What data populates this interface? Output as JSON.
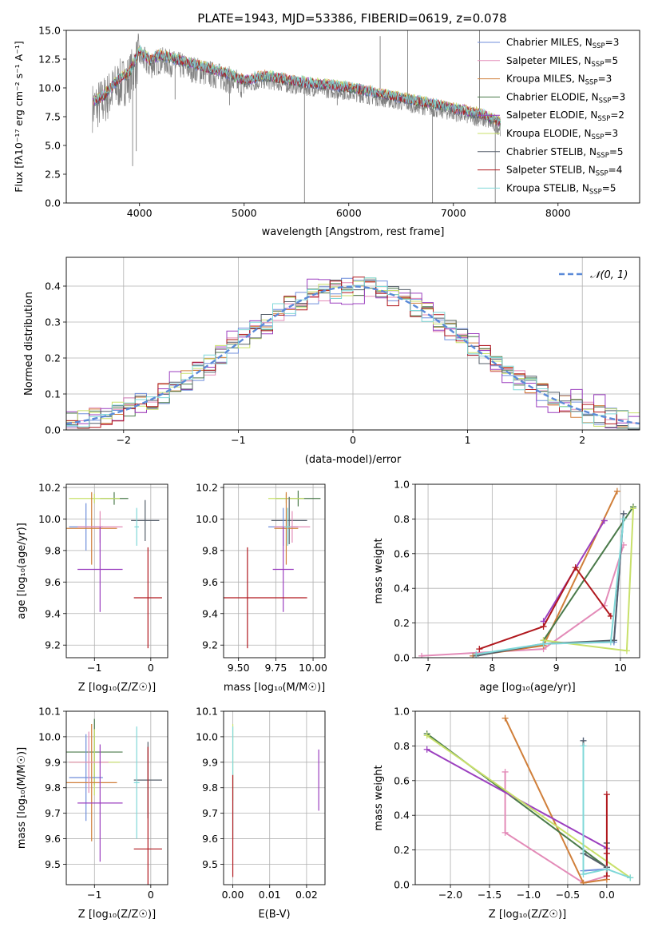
{
  "figure_title": "PLATE=1943, MJD=53386, FIBERID=0619, z=0.078",
  "series_styles": [
    {
      "name": "Chabrier MILES, N$_{SSP}$=3",
      "legend_main": "Chabrier MILES, N",
      "legend_sub": "SSP",
      "legend_tail": "=3",
      "color": "#6f8ddb"
    },
    {
      "name": "Salpeter MILES, N$_{SSP}$=5",
      "legend_main": "Salpeter MILES, N",
      "legend_sub": "SSP",
      "legend_tail": "=5",
      "color": "#e38bb8"
    },
    {
      "name": "Kroupa MILES, N$_{SSP}$=3",
      "legend_main": "Kroupa MILES, N",
      "legend_sub": "SSP",
      "legend_tail": "=3",
      "color": "#d07f3a"
    },
    {
      "name": "Chabrier ELODIE, N$_{SSP}$=3",
      "legend_main": "Chabrier ELODIE, N",
      "legend_sub": "SSP",
      "legend_tail": "=3",
      "color": "#4a7a4a"
    },
    {
      "name": "Salpeter ELODIE, N$_{SSP}$=2",
      "legend_main": "Salpeter ELODIE, N",
      "legend_sub": "SSP",
      "legend_tail": "=2",
      "color": "#9b3fbf"
    },
    {
      "name": "Kroupa ELODIE, N$_{SSP}$=3",
      "legend_main": "Kroupa ELODIE, N",
      "legend_sub": "SSP",
      "legend_tail": "=3",
      "color": "#c8e06a"
    },
    {
      "name": "Chabrier STELIB, N$_{SSP}$=5",
      "legend_main": "Chabrier STELIB, N",
      "legend_sub": "SSP",
      "legend_tail": "=5",
      "color": "#555f6a"
    },
    {
      "name": "Salpeter STELIB, N$_{SSP}$=4",
      "legend_main": "Salpeter STELIB, N",
      "legend_sub": "SSP",
      "legend_tail": "=4",
      "color": "#b0181e"
    },
    {
      "name": "Kroupa STELIB, N$_{SSP}$=5",
      "legend_main": "Kroupa STELIB, N",
      "legend_sub": "SSP",
      "legend_tail": "=5",
      "color": "#7fd8d8"
    }
  ],
  "chart_data": [
    {
      "id": "spectrum",
      "type": "line",
      "title": "PLATE=1943, MJD=53386, FIBERID=0619, z=0.078",
      "xlabel": "wavelength [Angstrom, rest frame]",
      "ylabel": "Flux [f_λ 10^-17 erg cm^-2 s^-1 A^-1]",
      "xlim": [
        3300,
        8780
      ],
      "ylim": [
        0,
        15
      ],
      "xticks": [
        4000,
        5000,
        6000,
        7000,
        8000
      ],
      "yticks": [
        0.0,
        2.5,
        5.0,
        7.5,
        10.0,
        12.5,
        15.0
      ],
      "legend_position": "upper right",
      "data_color": "#808080",
      "continuum": {
        "x": [
          3550,
          3650,
          3800,
          3900,
          4000,
          4100,
          4200,
          4400,
          4600,
          4800,
          5000,
          5200,
          5500,
          6000,
          6500,
          7000,
          7300,
          7450
        ],
        "y": [
          8.3,
          8.8,
          10.3,
          10.8,
          12.8,
          11.9,
          12.4,
          11.9,
          11.4,
          10.9,
          10.2,
          10.6,
          10.1,
          9.6,
          8.7,
          7.8,
          7.2,
          6.5
        ]
      },
      "spikes": [
        {
          "x": 3934,
          "y": 3.2
        },
        {
          "x": 3969,
          "y": 4.5
        },
        {
          "x": 4340,
          "y": 9.0
        },
        {
          "x": 4861,
          "y": 8.5
        },
        {
          "x": 5577,
          "y": 0.0
        },
        {
          "x": 5890,
          "y": 8.5
        },
        {
          "x": 6563,
          "y": 15.0
        },
        {
          "x": 6300,
          "y": 14.5
        },
        {
          "x": 6800,
          "y": 0.0
        },
        {
          "x": 7250,
          "y": 15.0
        },
        {
          "x": 7400,
          "y": 0.0
        }
      ]
    },
    {
      "id": "residuals",
      "type": "histogram",
      "xlabel": "(data-model)/error",
      "ylabel": "Normed distribution",
      "xlim": [
        -2.5,
        2.5
      ],
      "ylim": [
        0,
        0.48
      ],
      "xticks": [
        -2,
        -1,
        0,
        1,
        2
      ],
      "yticks": [
        0.0,
        0.1,
        0.2,
        0.3,
        0.4
      ],
      "legend_position": "upper right",
      "reference_curve": {
        "name": "N(0,1)",
        "label": "𝒩(0, 1)",
        "color": "#5b8ad8",
        "mean": 0,
        "sigma": 1
      },
      "bin_width": 0.1,
      "series_shape_variants": 9
    },
    {
      "id": "age_vs_Z",
      "type": "errorbar",
      "xlabel": "Z [log10(Z/Z☉)]",
      "ylabel": "age [log10(age/yr)]",
      "xlim": [
        -1.5,
        0.3
      ],
      "ylim": [
        9.12,
        10.22
      ],
      "xticks": [
        -1,
        0
      ],
      "yticks": [
        9.2,
        9.4,
        9.6,
        9.8,
        10.0,
        10.2
      ],
      "points": [
        {
          "x": -0.65,
          "y": 10.13,
          "xerr": 0.25,
          "yerr": 0.04,
          "c": 3
        },
        {
          "x": -1.0,
          "y": 10.13,
          "xerr": 0.45,
          "yerr": 0.03,
          "c": 5
        },
        {
          "x": -1.15,
          "y": 9.95,
          "xerr": 0.3,
          "yerr": 0.15,
          "c": 0
        },
        {
          "x": -1.05,
          "y": 9.94,
          "xerr": 0.45,
          "yerr": 0.23,
          "c": 2
        },
        {
          "x": -0.9,
          "y": 9.95,
          "xerr": 0.4,
          "yerr": 0.1,
          "c": 1
        },
        {
          "x": -0.9,
          "y": 9.68,
          "xerr": 0.4,
          "yerr": 0.27,
          "c": 4
        },
        {
          "x": -0.1,
          "y": 9.99,
          "xerr": 0.25,
          "yerr": 0.13,
          "c": 6
        },
        {
          "x": -0.25,
          "y": 9.95,
          "xerr": 0.04,
          "yerr": 0.12,
          "c": 8
        },
        {
          "x": -0.05,
          "y": 9.5,
          "xerr": 0.25,
          "yerr": 0.32,
          "c": 7
        }
      ]
    },
    {
      "id": "age_vs_mass",
      "type": "errorbar",
      "xlabel": "mass [log10(M/M☉)]",
      "ylabel": "",
      "xlim": [
        9.4,
        10.08
      ],
      "ylim": [
        9.12,
        10.22
      ],
      "xticks": [
        9.5,
        9.75,
        10.0
      ],
      "tick_labels": [
        "9.50",
        "9.75",
        "10.00"
      ],
      "yticks": [
        9.2,
        9.4,
        9.6,
        9.8,
        10.0,
        10.2
      ],
      "points": [
        {
          "x": 9.9,
          "y": 10.13,
          "xerr": 0.15,
          "yerr": 0.05,
          "c": 3
        },
        {
          "x": 9.82,
          "y": 10.13,
          "xerr": 0.12,
          "yerr": 0.03,
          "c": 5
        },
        {
          "x": 9.84,
          "y": 9.99,
          "xerr": 0.12,
          "yerr": 0.15,
          "c": 6
        },
        {
          "x": 9.8,
          "y": 9.95,
          "xerr": 0.1,
          "yerr": 0.12,
          "c": 0
        },
        {
          "x": 9.86,
          "y": 9.95,
          "xerr": 0.12,
          "yerr": 0.1,
          "c": 1
        },
        {
          "x": 9.82,
          "y": 9.94,
          "xerr": 0.08,
          "yerr": 0.23,
          "c": 2
        },
        {
          "x": 9.83,
          "y": 9.95,
          "xerr": 0.02,
          "yerr": 0.12,
          "c": 8
        },
        {
          "x": 9.8,
          "y": 9.68,
          "xerr": 0.07,
          "yerr": 0.27,
          "c": 4
        },
        {
          "x": 9.56,
          "y": 9.5,
          "xerr": 0.4,
          "yerr": 0.32,
          "c": 7
        }
      ]
    },
    {
      "id": "weight_vs_age",
      "type": "line",
      "xlabel": "age [log10(age/yr)]",
      "ylabel": "mass weight",
      "xlim": [
        6.8,
        10.3
      ],
      "ylim": [
        0,
        1
      ],
      "xticks": [
        7,
        8,
        9,
        10
      ],
      "yticks": [
        0.0,
        0.2,
        0.4,
        0.6,
        0.8,
        1.0
      ],
      "series": [
        {
          "c": 0,
          "x": [
            7.7,
            8.8,
            9.9,
            10.05
          ],
          "y": [
            0.01,
            0.08,
            0.09,
            0.83
          ]
        },
        {
          "c": 1,
          "x": [
            6.9,
            8.8,
            9.75,
            10.05
          ],
          "y": [
            0.01,
            0.05,
            0.3,
            0.65
          ]
        },
        {
          "c": 2,
          "x": [
            7.7,
            8.8,
            9.95
          ],
          "y": [
            0.01,
            0.07,
            0.96
          ]
        },
        {
          "c": 3,
          "x": [
            8.8,
            10.2
          ],
          "y": [
            0.1,
            0.87
          ]
        },
        {
          "c": 4,
          "x": [
            8.8,
            9.75
          ],
          "y": [
            0.21,
            0.79
          ]
        },
        {
          "c": 5,
          "x": [
            8.8,
            10.1,
            10.2
          ],
          "y": [
            0.1,
            0.04,
            0.86
          ]
        },
        {
          "c": 6,
          "x": [
            7.75,
            8.8,
            9.9,
            10.05
          ],
          "y": [
            0.01,
            0.08,
            0.1,
            0.83
          ]
        },
        {
          "c": 7,
          "x": [
            7.8,
            8.8,
            9.3,
            9.85
          ],
          "y": [
            0.05,
            0.18,
            0.52,
            0.24
          ]
        },
        {
          "c": 8,
          "x": [
            7.75,
            8.8,
            9.85,
            10.05
          ],
          "y": [
            0.02,
            0.08,
            0.09,
            0.8
          ]
        }
      ]
    },
    {
      "id": "mass_vs_Z",
      "type": "errorbar",
      "xlabel": "Z [log10(Z/Z☉)]",
      "ylabel": "mass [log10(M/M☉)]",
      "xlim": [
        -1.5,
        0.3
      ],
      "ylim": [
        9.42,
        10.1
      ],
      "xticks": [
        -1,
        0
      ],
      "yticks": [
        9.5,
        9.6,
        9.7,
        9.8,
        9.9,
        10.0,
        10.1
      ],
      "points": [
        {
          "x": -1.0,
          "y": 9.94,
          "xerr": 0.5,
          "yerr": 0.13,
          "c": 3
        },
        {
          "x": -1.0,
          "y": 9.9,
          "xerr": 0.45,
          "yerr": 0.13,
          "c": 5
        },
        {
          "x": -1.15,
          "y": 9.84,
          "xerr": 0.3,
          "yerr": 0.17,
          "c": 0
        },
        {
          "x": -1.05,
          "y": 9.82,
          "xerr": 0.45,
          "yerr": 0.23,
          "c": 2
        },
        {
          "x": -1.1,
          "y": 9.9,
          "xerr": 0.35,
          "yerr": 0.12,
          "c": 1
        },
        {
          "x": -0.9,
          "y": 9.74,
          "xerr": 0.4,
          "yerr": 0.23,
          "c": 4
        },
        {
          "x": -0.05,
          "y": 9.83,
          "xerr": 0.25,
          "yerr": 0.15,
          "c": 6
        },
        {
          "x": -0.25,
          "y": 9.82,
          "xerr": 0.05,
          "yerr": 0.22,
          "c": 8
        },
        {
          "x": -0.05,
          "y": 9.56,
          "xerr": 0.25,
          "yerr": 0.4,
          "c": 7
        }
      ]
    },
    {
      "id": "mass_vs_ebv",
      "type": "errorbar",
      "xlabel": "E(B-V)",
      "ylabel": "",
      "xlim": [
        -0.0025,
        0.025
      ],
      "ylim": [
        9.42,
        10.1
      ],
      "xticks": [
        0.0,
        0.01,
        0.02
      ],
      "tick_labels": [
        "0.00",
        "0.01",
        "0.02"
      ],
      "yticks": [
        9.5,
        9.6,
        9.7,
        9.8,
        9.9,
        10.0,
        10.1
      ],
      "points": [
        {
          "x": 0.0,
          "y": 9.9,
          "xerr": 0,
          "yerr": 0.15,
          "c": 5
        },
        {
          "x": 0.0,
          "y": 9.82,
          "xerr": 0,
          "yerr": 0.22,
          "c": 8
        },
        {
          "x": 0.0,
          "y": 9.65,
          "xerr": 0,
          "yerr": 0.2,
          "c": 7
        },
        {
          "x": 0.0233,
          "y": 9.83,
          "xerr": 0,
          "yerr": 0.12,
          "c": 4
        }
      ]
    },
    {
      "id": "weight_vs_Z",
      "type": "line",
      "xlabel": "Z [log10(Z/Z☉)]",
      "ylabel": "mass weight",
      "xlim": [
        -2.45,
        0.42
      ],
      "ylim": [
        0,
        1
      ],
      "xticks": [
        -2.0,
        -1.5,
        -1.0,
        -0.5,
        0.0
      ],
      "yticks": [
        0.0,
        0.2,
        0.4,
        0.6,
        0.8,
        1.0
      ],
      "series": [
        {
          "c": 0,
          "x": [
            -0.3,
            -0.3,
            0.0
          ],
          "y": [
            0.83,
            0.08,
            0.09
          ]
        },
        {
          "c": 1,
          "x": [
            -1.3,
            -1.3,
            -0.3,
            0.0
          ],
          "y": [
            0.65,
            0.3,
            0.01,
            0.05
          ]
        },
        {
          "c": 2,
          "x": [
            -1.3,
            -0.3,
            0.0
          ],
          "y": [
            0.96,
            0.01,
            0.03
          ]
        },
        {
          "c": 3,
          "x": [
            -2.3,
            0.0
          ],
          "y": [
            0.87,
            0.1
          ]
        },
        {
          "c": 4,
          "x": [
            -2.3,
            0.0
          ],
          "y": [
            0.78,
            0.21
          ]
        },
        {
          "c": 5,
          "x": [
            -2.3,
            0.3
          ],
          "y": [
            0.86,
            0.04
          ]
        },
        {
          "c": 6,
          "x": [
            -0.3,
            -0.3,
            0.0,
            0.0
          ],
          "y": [
            0.83,
            0.18,
            0.1,
            0.24
          ]
        },
        {
          "c": 7,
          "x": [
            0.0,
            0.0,
            0.0
          ],
          "y": [
            0.52,
            0.18,
            0.05
          ]
        },
        {
          "c": 8,
          "x": [
            -0.3,
            -0.3,
            0.0,
            0.3
          ],
          "y": [
            0.8,
            0.06,
            0.09,
            0.04
          ]
        }
      ]
    }
  ]
}
